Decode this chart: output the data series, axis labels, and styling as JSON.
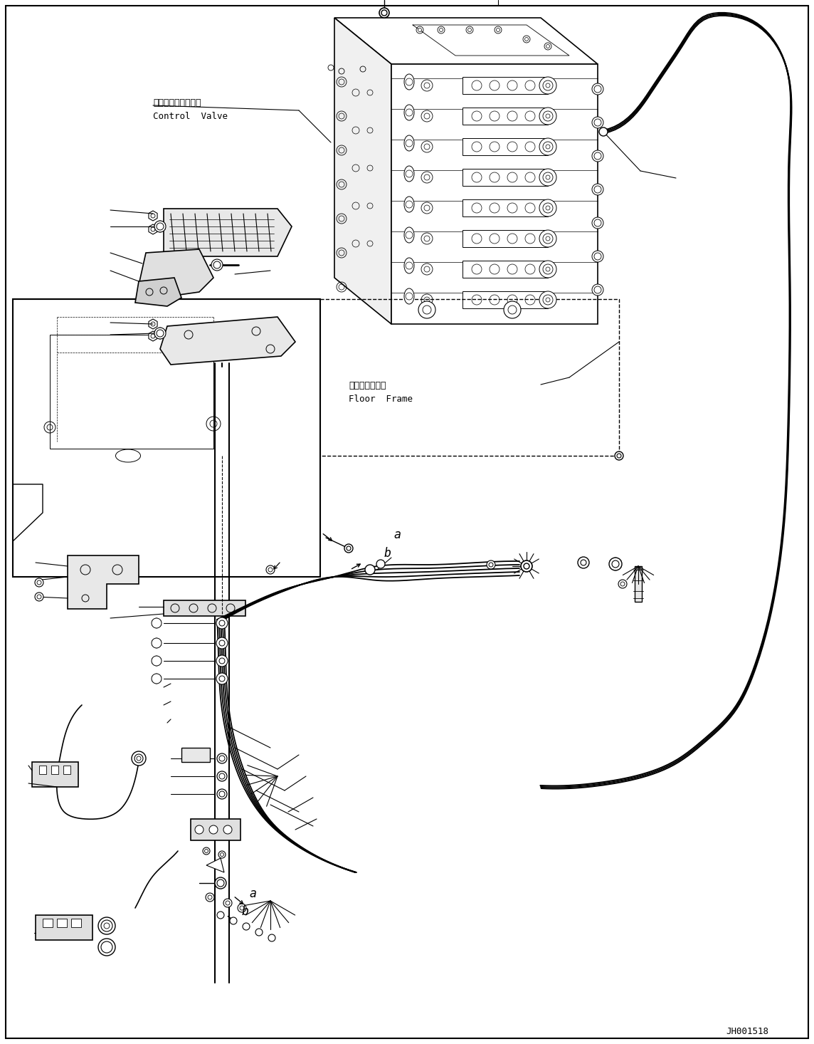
{
  "background_color": "#ffffff",
  "line_color": "#000000",
  "watermark": "JH001518",
  "label_control_valve_jp": "コントロールバルブ",
  "label_control_valve_en": "Control  Valve",
  "label_floor_frame_jp": "フロアフレーム",
  "label_floor_frame_en": "Floor  Frame",
  "label_a1": "a",
  "label_b1": "b",
  "label_a2": "a",
  "label_b2": "b",
  "fig_width": 11.44,
  "fig_height": 14.66,
  "dpi": 100
}
